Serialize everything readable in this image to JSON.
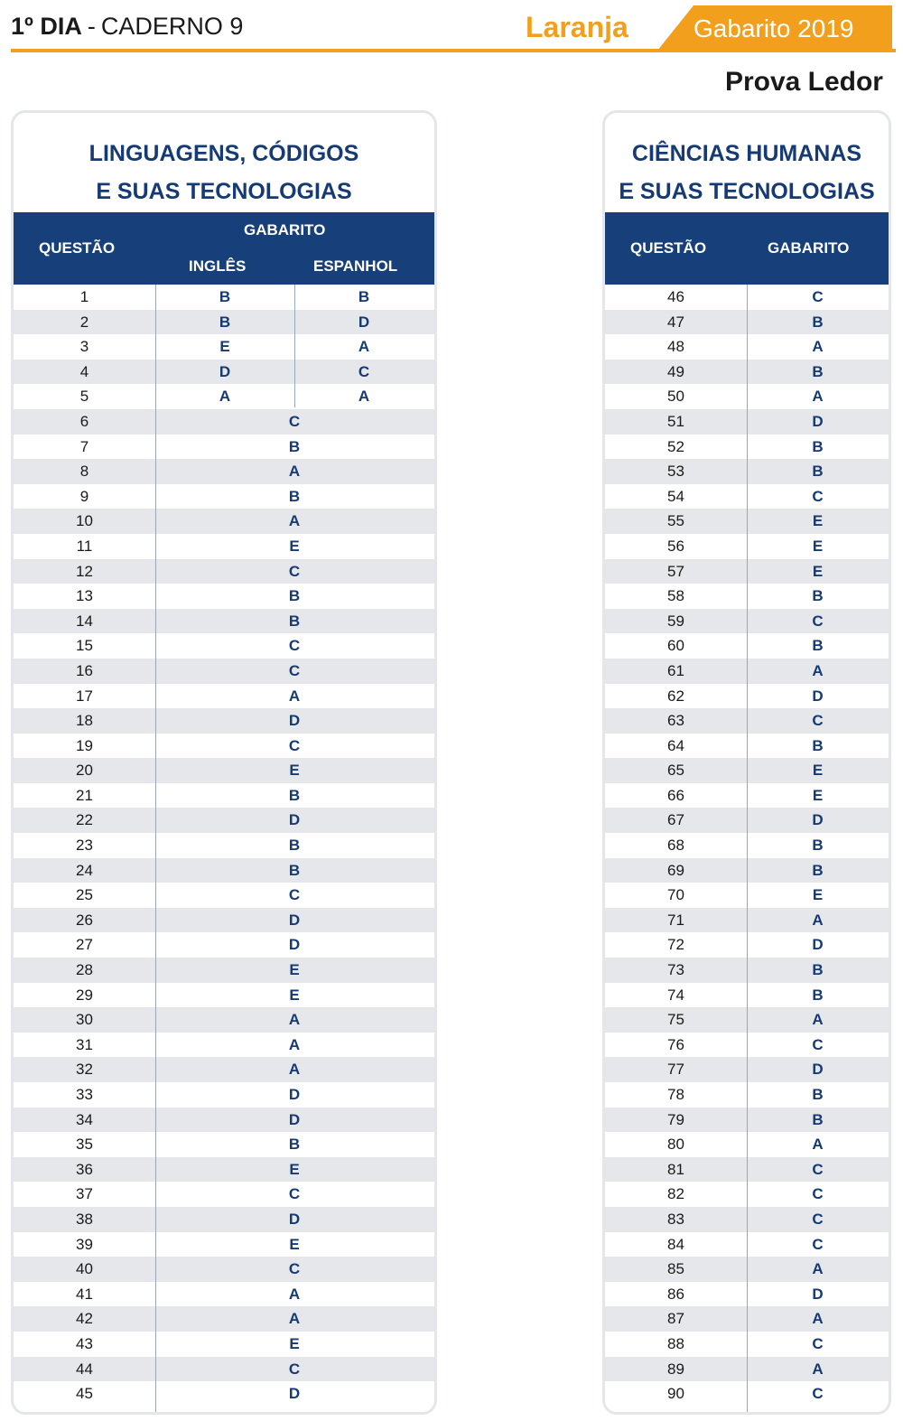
{
  "header": {
    "day": "1º DIA",
    "separator": "-",
    "booklet": "CADERNO 9",
    "color_name": "Laranja",
    "badge": "Gabarito 2019",
    "subtitle": "Prova Ledor"
  },
  "colors": {
    "accent": "#f29f1d",
    "navy": "#17407a",
    "stripe": "#e6e7ea"
  },
  "left_panel": {
    "title_line1": "LINGUAGENS, CÓDIGOS",
    "title_line2": "E SUAS TECNOLOGIAS",
    "col_question": "QUESTÃO",
    "col_answer": "GABARITO",
    "col_english": "INGLÊS",
    "col_spanish": "ESPANHOL",
    "language_rows": [
      {
        "q": "1",
        "en": "B",
        "es": "B"
      },
      {
        "q": "2",
        "en": "B",
        "es": "D"
      },
      {
        "q": "3",
        "en": "E",
        "es": "A"
      },
      {
        "q": "4",
        "en": "D",
        "es": "C"
      },
      {
        "q": "5",
        "en": "A",
        "es": "A"
      }
    ],
    "rows": [
      {
        "q": "6",
        "a": "C"
      },
      {
        "q": "7",
        "a": "B"
      },
      {
        "q": "8",
        "a": "A"
      },
      {
        "q": "9",
        "a": "B"
      },
      {
        "q": "10",
        "a": "A"
      },
      {
        "q": "11",
        "a": "E"
      },
      {
        "q": "12",
        "a": "C"
      },
      {
        "q": "13",
        "a": "B"
      },
      {
        "q": "14",
        "a": "B"
      },
      {
        "q": "15",
        "a": "C"
      },
      {
        "q": "16",
        "a": "C"
      },
      {
        "q": "17",
        "a": "A"
      },
      {
        "q": "18",
        "a": "D"
      },
      {
        "q": "19",
        "a": "C"
      },
      {
        "q": "20",
        "a": "E"
      },
      {
        "q": "21",
        "a": "B"
      },
      {
        "q": "22",
        "a": "D"
      },
      {
        "q": "23",
        "a": "B"
      },
      {
        "q": "24",
        "a": "B"
      },
      {
        "q": "25",
        "a": "C"
      },
      {
        "q": "26",
        "a": "D"
      },
      {
        "q": "27",
        "a": "D"
      },
      {
        "q": "28",
        "a": "E"
      },
      {
        "q": "29",
        "a": "E"
      },
      {
        "q": "30",
        "a": "A"
      },
      {
        "q": "31",
        "a": "A"
      },
      {
        "q": "32",
        "a": "A"
      },
      {
        "q": "33",
        "a": "D"
      },
      {
        "q": "34",
        "a": "D"
      },
      {
        "q": "35",
        "a": "B"
      },
      {
        "q": "36",
        "a": "E"
      },
      {
        "q": "37",
        "a": "C"
      },
      {
        "q": "38",
        "a": "D"
      },
      {
        "q": "39",
        "a": "E"
      },
      {
        "q": "40",
        "a": "C"
      },
      {
        "q": "41",
        "a": "A"
      },
      {
        "q": "42",
        "a": "A"
      },
      {
        "q": "43",
        "a": "E"
      },
      {
        "q": "44",
        "a": "C"
      },
      {
        "q": "45",
        "a": "D"
      }
    ]
  },
  "right_panel": {
    "title_line1": "CIÊNCIAS HUMANAS",
    "title_line2": "E SUAS TECNOLOGIAS",
    "col_question": "QUESTÃO",
    "col_answer": "GABARITO",
    "rows": [
      {
        "q": "46",
        "a": "C"
      },
      {
        "q": "47",
        "a": "B"
      },
      {
        "q": "48",
        "a": "A"
      },
      {
        "q": "49",
        "a": "B"
      },
      {
        "q": "50",
        "a": "A"
      },
      {
        "q": "51",
        "a": "D"
      },
      {
        "q": "52",
        "a": "B"
      },
      {
        "q": "53",
        "a": "B"
      },
      {
        "q": "54",
        "a": "C"
      },
      {
        "q": "55",
        "a": "E"
      },
      {
        "q": "56",
        "a": "E"
      },
      {
        "q": "57",
        "a": "E"
      },
      {
        "q": "58",
        "a": "B"
      },
      {
        "q": "59",
        "a": "C"
      },
      {
        "q": "60",
        "a": "B"
      },
      {
        "q": "61",
        "a": "A"
      },
      {
        "q": "62",
        "a": "D"
      },
      {
        "q": "63",
        "a": "C"
      },
      {
        "q": "64",
        "a": "B"
      },
      {
        "q": "65",
        "a": "E"
      },
      {
        "q": "66",
        "a": "E"
      },
      {
        "q": "67",
        "a": "D"
      },
      {
        "q": "68",
        "a": "B"
      },
      {
        "q": "69",
        "a": "B"
      },
      {
        "q": "70",
        "a": "E"
      },
      {
        "q": "71",
        "a": "A"
      },
      {
        "q": "72",
        "a": "D"
      },
      {
        "q": "73",
        "a": "B"
      },
      {
        "q": "74",
        "a": "B"
      },
      {
        "q": "75",
        "a": "A"
      },
      {
        "q": "76",
        "a": "C"
      },
      {
        "q": "77",
        "a": "D"
      },
      {
        "q": "78",
        "a": "B"
      },
      {
        "q": "79",
        "a": "B"
      },
      {
        "q": "80",
        "a": "A"
      },
      {
        "q": "81",
        "a": "C"
      },
      {
        "q": "82",
        "a": "C"
      },
      {
        "q": "83",
        "a": "C"
      },
      {
        "q": "84",
        "a": "C"
      },
      {
        "q": "85",
        "a": "A"
      },
      {
        "q": "86",
        "a": "D"
      },
      {
        "q": "87",
        "a": "A"
      },
      {
        "q": "88",
        "a": "C"
      },
      {
        "q": "89",
        "a": "A"
      },
      {
        "q": "90",
        "a": "C"
      }
    ]
  }
}
